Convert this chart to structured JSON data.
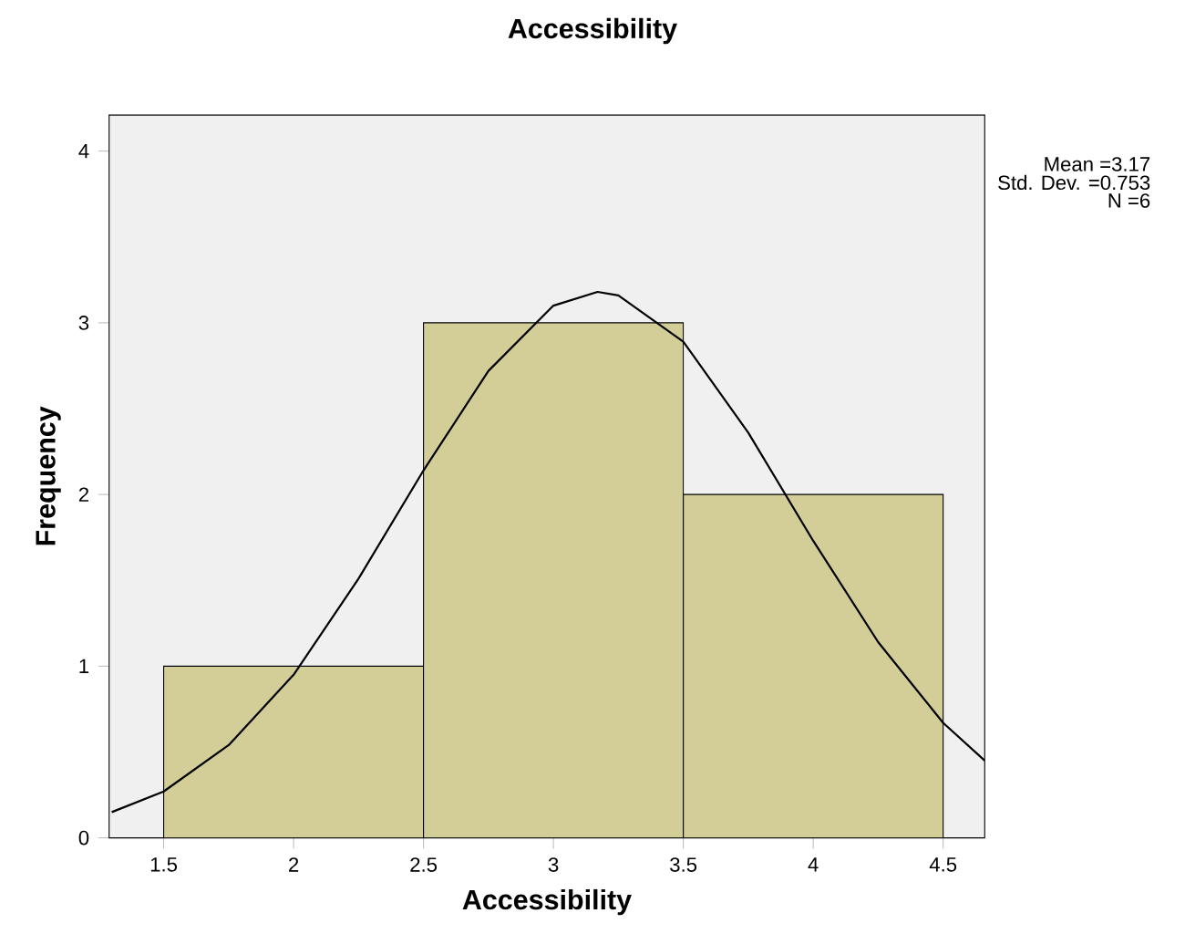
{
  "chart_data": {
    "type": "histogram",
    "title": "Accessibility",
    "xlabel": "Accessibility",
    "ylabel": "Frequency",
    "bins": [
      1.5,
      2.5,
      3.5,
      4.5
    ],
    "values": [
      1,
      3,
      2
    ],
    "color": "#d3ce97",
    "series": [
      {
        "type": "line",
        "color": "#000000",
        "x": [
          1.3,
          1.5,
          1.75,
          2.0,
          2.25,
          2.5,
          2.75,
          3.0,
          3.17,
          3.25,
          3.5,
          3.75,
          4.0,
          4.25,
          4.5,
          4.66
        ],
        "values": [
          0.15,
          0.27,
          0.54,
          0.95,
          1.51,
          2.14,
          2.72,
          3.1,
          3.18,
          3.16,
          2.89,
          2.36,
          1.73,
          1.14,
          0.67,
          0.45
        ]
      }
    ],
    "xlim": [
      1.29,
      4.66
    ],
    "ylim": [
      0,
      4.21
    ],
    "xticks": [
      1.5,
      2,
      2.5,
      3,
      3.5,
      4,
      4.5
    ],
    "yticks": [
      0,
      1,
      2,
      3,
      4
    ],
    "annotations": [
      "Mean =3.17",
      "Std. Dev. =0.753",
      "N =6"
    ],
    "grid": false
  }
}
